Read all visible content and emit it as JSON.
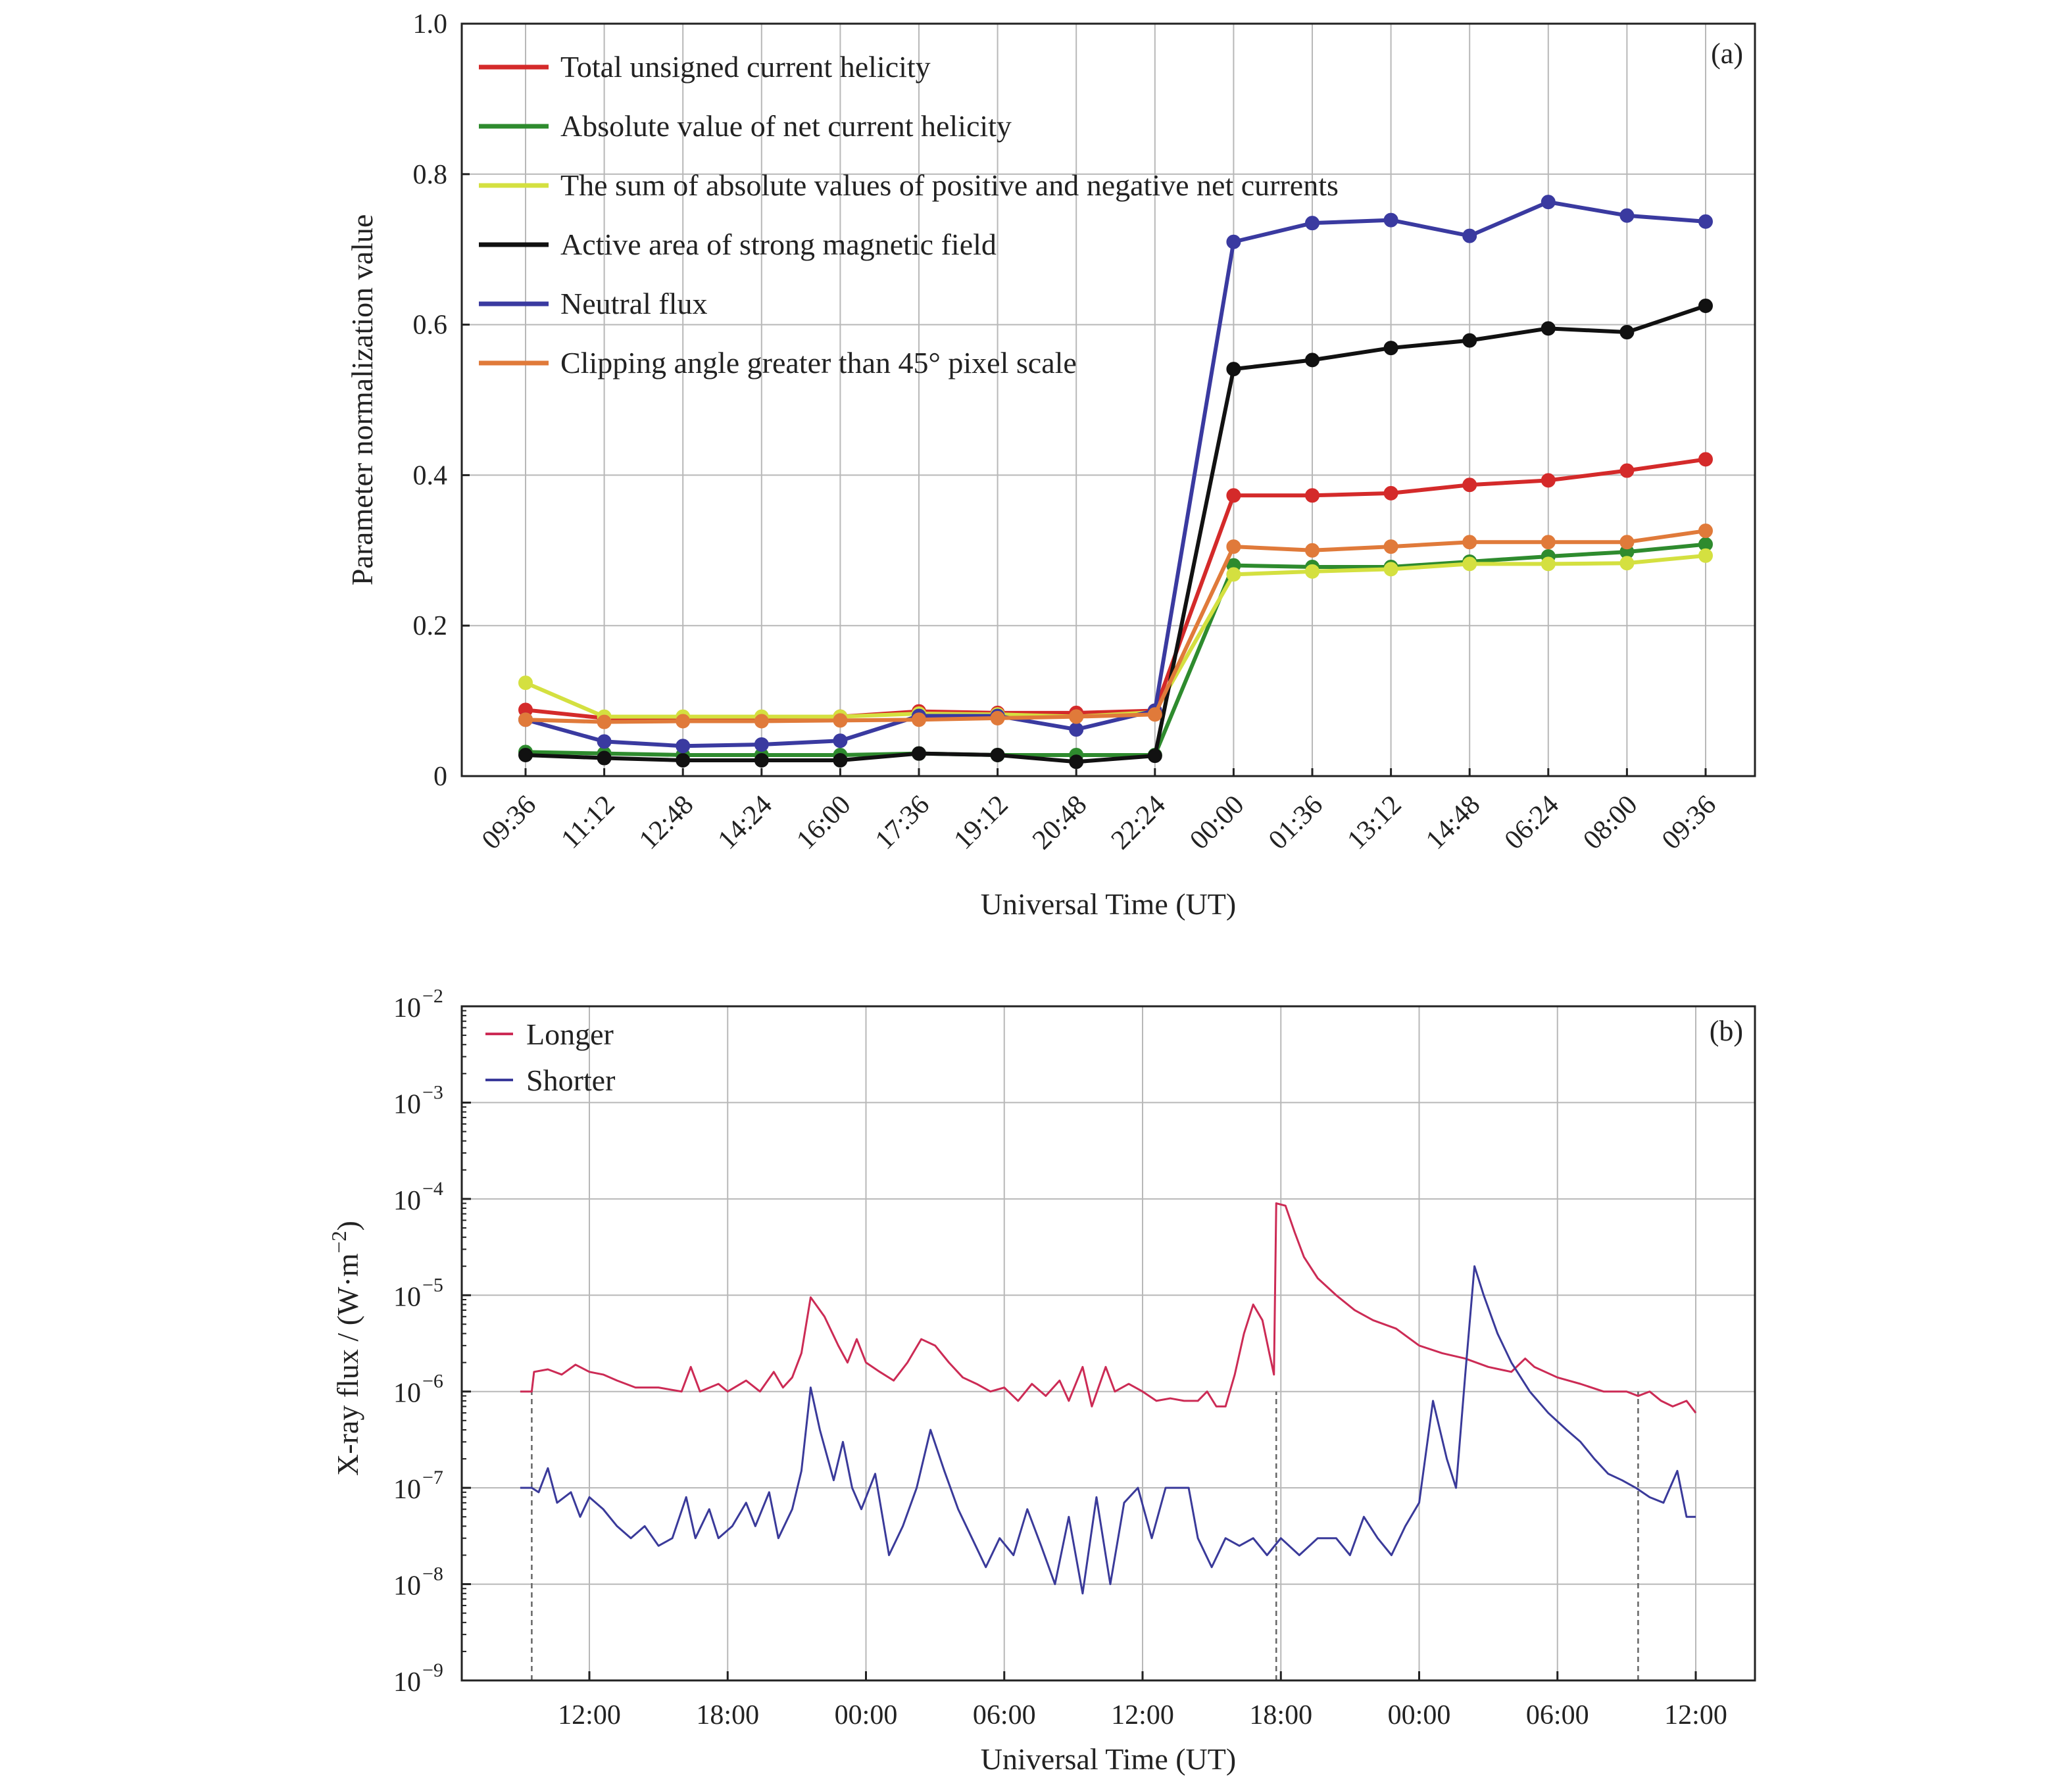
{
  "chart_data": [
    {
      "type": "line",
      "panel_label": "(a)",
      "xlabel": "Universal Time (UT)",
      "ylabel": "Parameter normalization value",
      "ylim": [
        0,
        1.0
      ],
      "yticks": [
        "0",
        "0.2",
        "0.4",
        "0.6",
        "0.8",
        "1.0"
      ],
      "yticks_values": [
        0,
        0.2,
        0.4,
        0.6,
        0.8,
        1.0
      ],
      "categories": [
        "09:36",
        "11:12",
        "12:48",
        "14:24",
        "16:00",
        "17:36",
        "19:12",
        "20:48",
        "22:24",
        "00:00",
        "01:36",
        "13:12",
        "14:48",
        "06:24",
        "08:00",
        "09:36"
      ],
      "grid": true,
      "legend_position": "top-left",
      "series": [
        {
          "name": "Total unsigned current helicity",
          "color": "#d42a2a",
          "values": [
            0.088,
            0.077,
            0.077,
            0.077,
            0.079,
            0.086,
            0.084,
            0.084,
            0.087,
            0.373,
            0.373,
            0.376,
            0.387,
            0.393,
            0.406,
            0.421
          ]
        },
        {
          "name": "Absolute value of net current helicity",
          "color": "#2e8b2e",
          "values": [
            0.032,
            0.03,
            0.028,
            0.028,
            0.028,
            0.03,
            0.028,
            0.028,
            0.028,
            0.28,
            0.278,
            0.278,
            0.285,
            0.292,
            0.298,
            0.308
          ]
        },
        {
          "name": "The sum of absolute values of positive and negative net currents",
          "color": "#d4e040",
          "values": [
            0.124,
            0.079,
            0.079,
            0.079,
            0.079,
            0.083,
            0.082,
            0.079,
            0.085,
            0.268,
            0.272,
            0.275,
            0.282,
            0.282,
            0.283,
            0.293
          ]
        },
        {
          "name": "Active area of strong magnetic field",
          "color": "#111111",
          "values": [
            0.028,
            0.024,
            0.021,
            0.021,
            0.021,
            0.03,
            0.028,
            0.019,
            0.027,
            0.541,
            0.553,
            0.569,
            0.579,
            0.595,
            0.59,
            0.625
          ]
        },
        {
          "name": "Neutral flux",
          "color": "#3a3aa0",
          "values": [
            0.075,
            0.046,
            0.04,
            0.042,
            0.047,
            0.08,
            0.08,
            0.062,
            0.087,
            0.71,
            0.735,
            0.739,
            0.718,
            0.763,
            0.745,
            0.737
          ]
        },
        {
          "name": "Clipping angle greater than 45° pixel scale",
          "color": "#e07a3a",
          "values": [
            0.075,
            0.072,
            0.073,
            0.073,
            0.074,
            0.075,
            0.077,
            0.079,
            0.082,
            0.305,
            0.3,
            0.305,
            0.311,
            0.311,
            0.311,
            0.326
          ]
        }
      ]
    },
    {
      "type": "line",
      "panel_label": "(b)",
      "xlabel": "Universal Time (UT)",
      "ylabel": "X-ray flux / (W·m",
      "ylabel_superscript": "−2",
      "ylabel_suffix": ")",
      "yscale": "log",
      "ylim": [
        1e-09,
        0.01
      ],
      "yticks": [
        "10",
        "10",
        "10",
        "10",
        "10",
        "10",
        "10",
        "10"
      ],
      "yticks_exponents": [
        "−2",
        "−3",
        "−4",
        "−5",
        "−6",
        "−7",
        "−8",
        "−9"
      ],
      "xticks": [
        "12:00",
        "18:00",
        "00:00",
        "06:00",
        "12:00",
        "18:00",
        "00:00",
        "06:00",
        "12:00"
      ],
      "x_unit": "hours from first 12:00 tick",
      "xlim": [
        -5.5,
        48.5
      ],
      "grid": true,
      "legend_position": "top-left",
      "vlines_hours": [
        -2.5,
        29.8,
        45.5
      ],
      "series": [
        {
          "name": "Longer",
          "color": "#cc2b55",
          "points": [
            [
              -3.0,
              1e-06
            ],
            [
              -2.5,
              1e-06
            ],
            [
              -2.4,
              1.6e-06
            ],
            [
              -1.8,
              1.7e-06
            ],
            [
              -1.2,
              1.5e-06
            ],
            [
              -0.6,
              1.9e-06
            ],
            [
              0,
              1.6e-06
            ],
            [
              0.6,
              1.5e-06
            ],
            [
              1.2,
              1.3e-06
            ],
            [
              2.0,
              1.1e-06
            ],
            [
              3.0,
              1.1e-06
            ],
            [
              4.0,
              1e-06
            ],
            [
              4.4,
              1.8e-06
            ],
            [
              4.8,
              1e-06
            ],
            [
              5.6,
              1.2e-06
            ],
            [
              6.0,
              1e-06
            ],
            [
              6.8,
              1.3e-06
            ],
            [
              7.4,
              1e-06
            ],
            [
              8.0,
              1.6e-06
            ],
            [
              8.4,
              1.1e-06
            ],
            [
              8.8,
              1.4e-06
            ],
            [
              9.2,
              2.5e-06
            ],
            [
              9.6,
              9.5e-06
            ],
            [
              10.2,
              6e-06
            ],
            [
              10.8,
              3e-06
            ],
            [
              11.2,
              2e-06
            ],
            [
              11.6,
              3.5e-06
            ],
            [
              12.0,
              2e-06
            ],
            [
              12.6,
              1.6e-06
            ],
            [
              13.2,
              1.3e-06
            ],
            [
              13.8,
              2e-06
            ],
            [
              14.4,
              3.5e-06
            ],
            [
              15.0,
              3e-06
            ],
            [
              15.6,
              2e-06
            ],
            [
              16.2,
              1.4e-06
            ],
            [
              16.8,
              1.2e-06
            ],
            [
              17.4,
              1e-06
            ],
            [
              18.0,
              1.1e-06
            ],
            [
              18.6,
              8e-07
            ],
            [
              19.2,
              1.2e-06
            ],
            [
              19.8,
              9e-07
            ],
            [
              20.4,
              1.3e-06
            ],
            [
              20.8,
              8e-07
            ],
            [
              21.4,
              1.8e-06
            ],
            [
              21.8,
              7e-07
            ],
            [
              22.4,
              1.8e-06
            ],
            [
              22.8,
              1e-06
            ],
            [
              23.4,
              1.2e-06
            ],
            [
              24.0,
              1e-06
            ],
            [
              24.6,
              8e-07
            ],
            [
              25.2,
              8.5e-07
            ],
            [
              25.8,
              8e-07
            ],
            [
              26.4,
              8e-07
            ],
            [
              26.8,
              1e-06
            ],
            [
              27.2,
              7e-07
            ],
            [
              27.6,
              7e-07
            ],
            [
              28.0,
              1.5e-06
            ],
            [
              28.4,
              4e-06
            ],
            [
              28.8,
              8e-06
            ],
            [
              29.2,
              5.5e-06
            ],
            [
              29.5,
              2.5e-06
            ],
            [
              29.7,
              1.5e-06
            ],
            [
              29.8,
              9e-05
            ],
            [
              30.2,
              8.5e-05
            ],
            [
              30.6,
              4.5e-05
            ],
            [
              31.0,
              2.5e-05
            ],
            [
              31.6,
              1.5e-05
            ],
            [
              32.4,
              1e-05
            ],
            [
              33.2,
              7e-06
            ],
            [
              34.0,
              5.5e-06
            ],
            [
              35.0,
              4.5e-06
            ],
            [
              36.0,
              3e-06
            ],
            [
              37.0,
              2.5e-06
            ],
            [
              38.0,
              2.2e-06
            ],
            [
              39.0,
              1.8e-06
            ],
            [
              40.0,
              1.6e-06
            ],
            [
              40.6,
              2.2e-06
            ],
            [
              41.0,
              1.8e-06
            ],
            [
              42.0,
              1.4e-06
            ],
            [
              43.0,
              1.2e-06
            ],
            [
              44.0,
              1e-06
            ],
            [
              45.0,
              1e-06
            ],
            [
              45.5,
              9e-07
            ],
            [
              46.0,
              1e-06
            ],
            [
              46.5,
              8e-07
            ],
            [
              47.0,
              7e-07
            ],
            [
              47.6,
              8e-07
            ],
            [
              48.0,
              6e-07
            ]
          ]
        },
        {
          "name": "Shorter",
          "color": "#3a3a9a",
          "points": [
            [
              -3.0,
              1e-07
            ],
            [
              -2.5,
              1e-07
            ],
            [
              -2.2,
              9e-08
            ],
            [
              -1.8,
              1.6e-07
            ],
            [
              -1.4,
              7e-08
            ],
            [
              -0.8,
              9e-08
            ],
            [
              -0.4,
              5e-08
            ],
            [
              0,
              8e-08
            ],
            [
              0.6,
              6e-08
            ],
            [
              1.2,
              4e-08
            ],
            [
              1.8,
              3e-08
            ],
            [
              2.4,
              4e-08
            ],
            [
              3.0,
              2.5e-08
            ],
            [
              3.6,
              3e-08
            ],
            [
              4.2,
              8e-08
            ],
            [
              4.6,
              3e-08
            ],
            [
              5.2,
              6e-08
            ],
            [
              5.6,
              3e-08
            ],
            [
              6.2,
              4e-08
            ],
            [
              6.8,
              7e-08
            ],
            [
              7.2,
              4e-08
            ],
            [
              7.8,
              9e-08
            ],
            [
              8.2,
              3e-08
            ],
            [
              8.8,
              6e-08
            ],
            [
              9.2,
              1.5e-07
            ],
            [
              9.6,
              1.1e-06
            ],
            [
              10.0,
              4e-07
            ],
            [
              10.6,
              1.2e-07
            ],
            [
              11.0,
              3e-07
            ],
            [
              11.4,
              1e-07
            ],
            [
              11.8,
              6e-08
            ],
            [
              12.4,
              1.4e-07
            ],
            [
              13.0,
              2e-08
            ],
            [
              13.6,
              4e-08
            ],
            [
              14.2,
              1e-07
            ],
            [
              14.8,
              4e-07
            ],
            [
              15.4,
              1.5e-07
            ],
            [
              16.0,
              6e-08
            ],
            [
              16.6,
              3e-08
            ],
            [
              17.2,
              1.5e-08
            ],
            [
              17.8,
              3e-08
            ],
            [
              18.4,
              2e-08
            ],
            [
              19.0,
              6e-08
            ],
            [
              19.6,
              2.5e-08
            ],
            [
              20.2,
              1e-08
            ],
            [
              20.8,
              5e-08
            ],
            [
              21.4,
              8e-09
            ],
            [
              22.0,
              8e-08
            ],
            [
              22.6,
              1e-08
            ],
            [
              23.2,
              7e-08
            ],
            [
              23.8,
              1e-07
            ],
            [
              24.4,
              3e-08
            ],
            [
              25.0,
              1e-07
            ],
            [
              26.0,
              1e-07
            ],
            [
              26.4,
              3e-08
            ],
            [
              27.0,
              1.5e-08
            ],
            [
              27.6,
              3e-08
            ],
            [
              28.2,
              2.5e-08
            ],
            [
              28.8,
              3e-08
            ],
            [
              29.4,
              2e-08
            ],
            [
              30.0,
              3e-08
            ],
            [
              30.8,
              2e-08
            ],
            [
              31.6,
              3e-08
            ],
            [
              32.4,
              3e-08
            ],
            [
              33.0,
              2e-08
            ],
            [
              33.6,
              5e-08
            ],
            [
              34.2,
              3e-08
            ],
            [
              34.8,
              2e-08
            ],
            [
              35.4,
              4e-08
            ],
            [
              36.0,
              7e-08
            ],
            [
              36.6,
              8e-07
            ],
            [
              37.2,
              2e-07
            ],
            [
              37.6,
              1e-07
            ],
            [
              38.0,
              1.5e-06
            ],
            [
              38.4,
              2e-05
            ],
            [
              38.8,
              1e-05
            ],
            [
              39.4,
              4e-06
            ],
            [
              40.0,
              2e-06
            ],
            [
              40.8,
              1e-06
            ],
            [
              41.6,
              6e-07
            ],
            [
              42.4,
              4e-07
            ],
            [
              43.0,
              3e-07
            ],
            [
              43.6,
              2e-07
            ],
            [
              44.2,
              1.4e-07
            ],
            [
              44.8,
              1.2e-07
            ],
            [
              45.4,
              1e-07
            ],
            [
              46.0,
              8e-08
            ],
            [
              46.6,
              7e-08
            ],
            [
              47.2,
              1.5e-07
            ],
            [
              47.6,
              5e-08
            ],
            [
              48.0,
              5e-08
            ]
          ]
        }
      ]
    }
  ]
}
